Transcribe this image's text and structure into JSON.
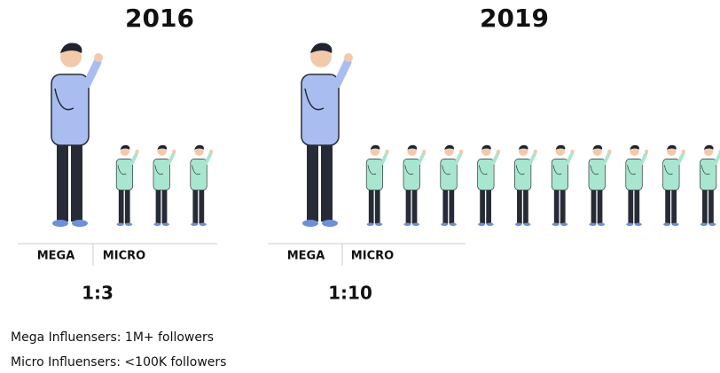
{
  "panels": [
    {
      "year": "2016",
      "mega_label": "MEGA",
      "micro_label": "MICRO",
      "ratio": "1:3",
      "micro_figures": 3
    },
    {
      "year": "2019",
      "mega_label": "MEGA",
      "micro_label": "MICRO",
      "ratio": "1:10",
      "micro_figures": 10
    }
  ],
  "legend": [
    "Mega Influensers: 1M+ followers",
    "Micro Influensers: <100K followers"
  ]
}
